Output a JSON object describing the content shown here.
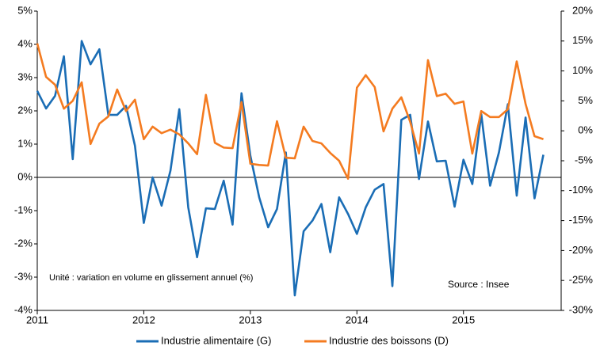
{
  "chart_data": {
    "type": "line",
    "x": [
      2011,
      2011.083,
      2011.167,
      2011.25,
      2011.333,
      2011.417,
      2011.5,
      2011.583,
      2011.667,
      2011.75,
      2011.833,
      2011.917,
      2012,
      2012.083,
      2012.167,
      2012.25,
      2012.333,
      2012.417,
      2012.5,
      2012.583,
      2012.667,
      2012.75,
      2012.833,
      2012.917,
      2013,
      2013.083,
      2013.167,
      2013.25,
      2013.333,
      2013.417,
      2013.5,
      2013.583,
      2013.667,
      2013.75,
      2013.833,
      2013.917,
      2014,
      2014.083,
      2014.167,
      2014.25,
      2014.333,
      2014.417,
      2014.5,
      2014.583,
      2014.667,
      2014.75,
      2014.833,
      2014.917,
      2015,
      2015.083,
      2015.167,
      2015.25,
      2015.333,
      2015.417,
      2015.5,
      2015.583,
      2015.667,
      2015.75
    ],
    "series": [
      {
        "name": "Industrie alimentaire (G)",
        "color": "#1a6db5",
        "values": [
          2.6,
          2.07,
          2.45,
          3.64,
          0.55,
          4.1,
          3.4,
          3.85,
          1.88,
          1.88,
          2.15,
          0.95,
          -1.37,
          0,
          -0.85,
          0.2,
          2.05,
          -0.9,
          -2.4,
          -0.93,
          -0.95,
          -0.1,
          -1.42,
          2.53,
          0.65,
          -0.6,
          -1.5,
          -0.95,
          0.75,
          -3.55,
          -1.62,
          -1.3,
          -0.8,
          -2.25,
          -0.6,
          -1.1,
          -1.7,
          -0.9,
          -0.37,
          -0.2,
          -3.27,
          1.73,
          1.88,
          -0.05,
          1.68,
          0.48,
          0.5,
          -0.88,
          0.53,
          -0.2,
          1.9,
          -0.25,
          0.75,
          2.2,
          -0.55,
          1.8,
          -0.63,
          0.68
        ]
      },
      {
        "name": "Industrie des boissons (D)",
        "color": "#f47b20",
        "axis": "y2",
        "values": [
          14.6,
          9.0,
          7.7,
          3.7,
          5.0,
          8.1,
          -2.2,
          1.2,
          2.4,
          6.9,
          3.3,
          5.2,
          -1.4,
          0.7,
          -0.4,
          0.2,
          -0.6,
          -2.1,
          -3.9,
          6.0,
          -2.0,
          -2.8,
          -2.9,
          4.8,
          -5.5,
          -5.7,
          -5.8,
          1.6,
          -4.5,
          -4.6,
          0.7,
          -1.7,
          -2.1,
          -3.7,
          -5.0,
          -8.0,
          7.2,
          9.3,
          7.3,
          -0.1,
          3.7,
          5.6,
          1.5,
          -3.8,
          11.8,
          5.8,
          6.2,
          4.5,
          4.9,
          -3.8,
          3.3,
          2.3,
          2.3,
          3.6,
          11.6,
          4.5,
          -0.9,
          -1.4
        ]
      }
    ],
    "xlim": [
      2011,
      2015.917
    ],
    "xticks": [
      2011,
      2012,
      2013,
      2014,
      2015
    ],
    "ylim": [
      -4,
      5
    ],
    "yticks": [
      {
        "value": -4,
        "label": "-4%"
      },
      {
        "value": -3,
        "label": "-3%"
      },
      {
        "value": -2,
        "label": "-2%"
      },
      {
        "value": -1,
        "label": "-1%"
      },
      {
        "value": 0,
        "label": "0%"
      },
      {
        "value": 1,
        "label": "1%"
      },
      {
        "value": 2,
        "label": "2%"
      },
      {
        "value": 3,
        "label": "3%"
      },
      {
        "value": 4,
        "label": "4%"
      },
      {
        "value": 5,
        "label": "5%"
      }
    ],
    "y2lim": [
      -30,
      20
    ],
    "y2ticks": [
      {
        "value": -30,
        "label": "-30%"
      },
      {
        "value": -25,
        "label": "-25%"
      },
      {
        "value": -20,
        "label": "-20%"
      },
      {
        "value": -15,
        "label": "-15%"
      },
      {
        "value": -10,
        "label": "-10%"
      },
      {
        "value": -5,
        "label": "-5%"
      },
      {
        "value": 0,
        "label": "0%"
      },
      {
        "value": 5,
        "label": "5%"
      },
      {
        "value": 10,
        "label": "10%"
      },
      {
        "value": 15,
        "label": "15%"
      },
      {
        "value": 20,
        "label": "20%"
      }
    ],
    "annotations": [
      {
        "text": "Unité : variation en volume en glissement annuel (%)",
        "color": "#1a6db5"
      },
      {
        "text": "Source : Insee",
        "color": "#e0201b"
      }
    ],
    "legend": "bottom"
  }
}
